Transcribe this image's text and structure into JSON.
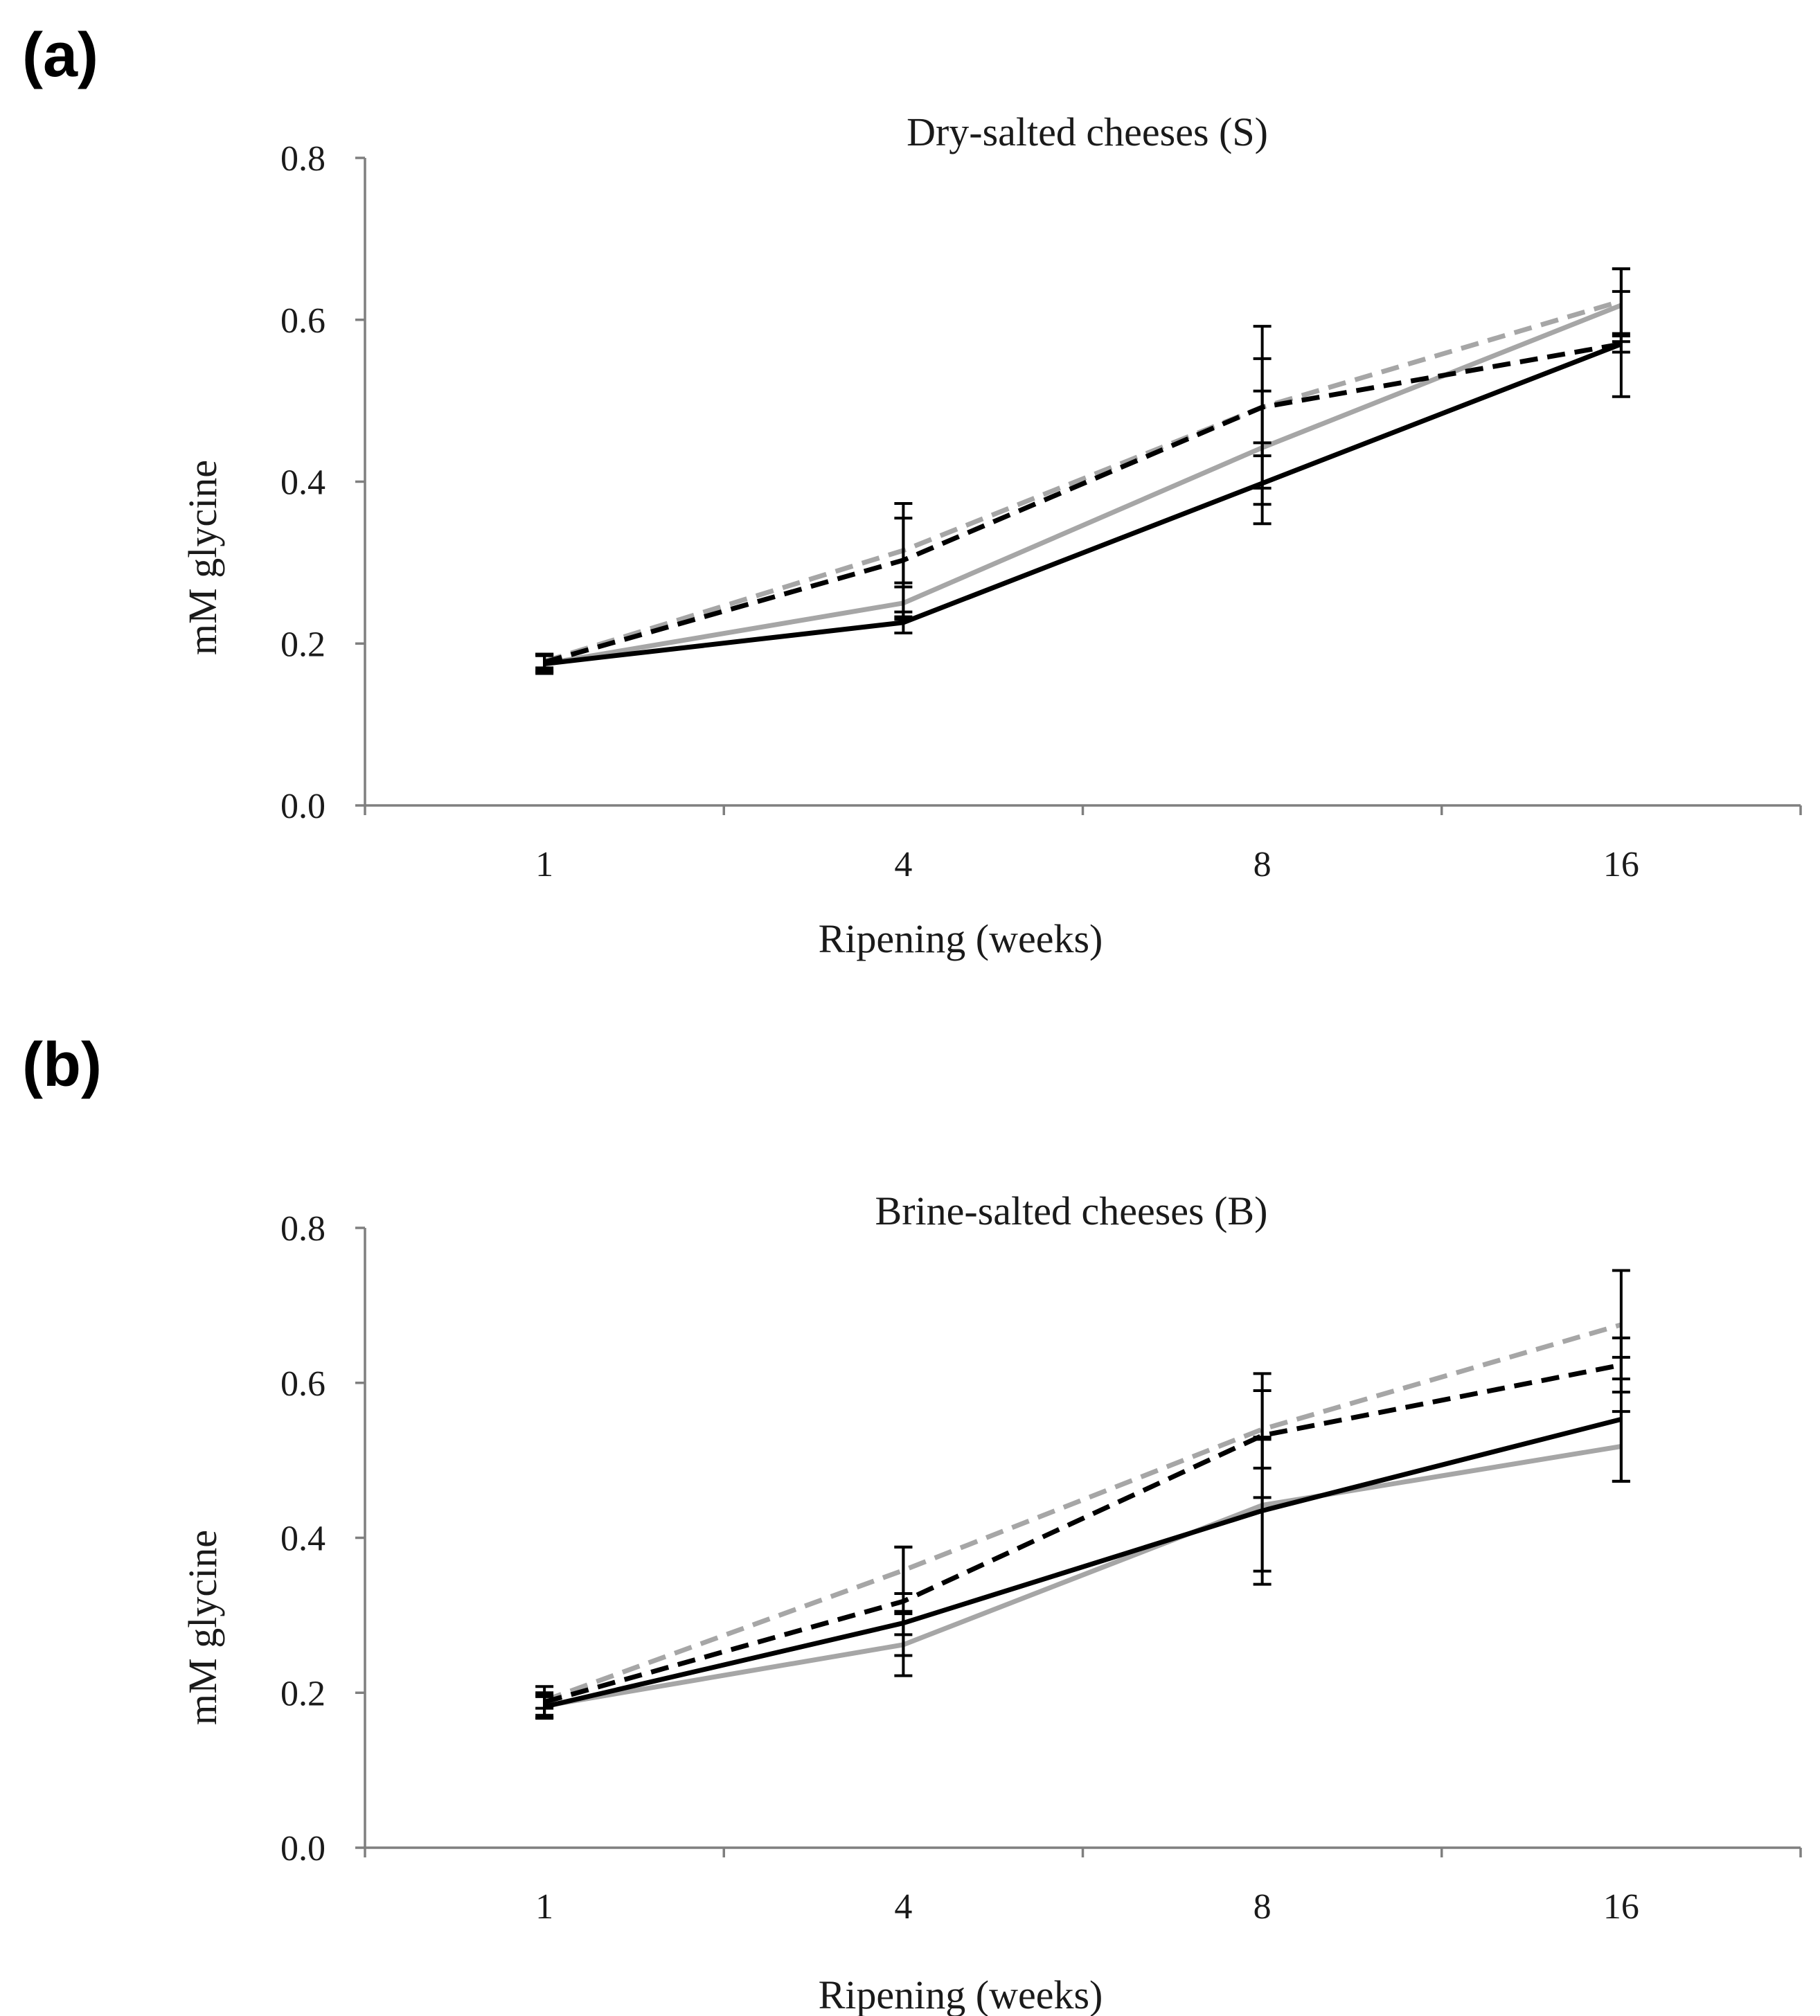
{
  "chart_data": [
    {
      "panel_label": "(a)",
      "type": "line",
      "title": "Dry-salted cheeses (S)",
      "xlabel": "Ripening (weeks)",
      "ylabel": "mM glycine",
      "categories": [
        "1",
        "4",
        "8",
        "16"
      ],
      "ylim": [
        0.0,
        0.8
      ],
      "yticks": [
        "0.0",
        "0.2",
        "0.4",
        "0.6",
        "0.8"
      ],
      "grid": false,
      "series": [
        {
          "name": "solid black",
          "color": "#000000",
          "dash": "solid",
          "values": [
            0.175,
            0.226,
            0.398,
            0.57
          ],
          "err": [
            0.012,
            0.013,
            0.05,
            0.065
          ]
        },
        {
          "name": "solid grey",
          "color": "#a6a6a6",
          "dash": "solid",
          "values": [
            0.175,
            0.25,
            0.442,
            0.618
          ],
          "err": [
            0.01,
            0.02,
            0.07,
            0.045
          ]
        },
        {
          "name": "dashed black",
          "color": "#000000",
          "dash": "dashed",
          "values": [
            0.177,
            0.303,
            0.492,
            0.57
          ],
          "err": [
            0.01,
            0.07,
            0.1,
            0.01
          ]
        },
        {
          "name": "dashed grey",
          "color": "#a6a6a6",
          "dash": "dashed",
          "values": [
            0.178,
            0.315,
            0.492,
            0.623
          ],
          "err": [
            0.008,
            0.04,
            0.06,
            0.04
          ]
        }
      ]
    },
    {
      "panel_label": "(b)",
      "type": "line",
      "title": "Brine-salted cheeses (B)",
      "xlabel": "Ripening (weeks)",
      "ylabel": "mM glycine",
      "categories": [
        "1",
        "4",
        "8",
        "16"
      ],
      "ylim": [
        0.0,
        0.8
      ],
      "yticks": [
        "0.0",
        "0.2",
        "0.4",
        "0.6",
        "0.8"
      ],
      "grid": false,
      "series": [
        {
          "name": "solid black",
          "color": "#000000",
          "dash": "solid",
          "values": [
            0.182,
            0.29,
            0.435,
            0.553
          ],
          "err": [
            0.015,
            0.015,
            0.095,
            0.08
          ]
        },
        {
          "name": "solid grey",
          "color": "#a6a6a6",
          "dash": "solid",
          "values": [
            0.183,
            0.262,
            0.442,
            0.518
          ],
          "err": [
            0.012,
            0.04,
            0.085,
            0.045
          ]
        },
        {
          "name": "dashed black",
          "color": "#000000",
          "dash": "dashed",
          "values": [
            0.188,
            0.318,
            0.532,
            0.623
          ],
          "err": [
            0.02,
            0.07,
            0.08,
            0.035
          ]
        },
        {
          "name": "dashed grey",
          "color": "#a6a6a6",
          "dash": "dashed",
          "values": [
            0.19,
            0.358,
            0.54,
            0.675
          ],
          "err": [
            0.01,
            0.03,
            0.05,
            0.07
          ]
        }
      ]
    }
  ]
}
